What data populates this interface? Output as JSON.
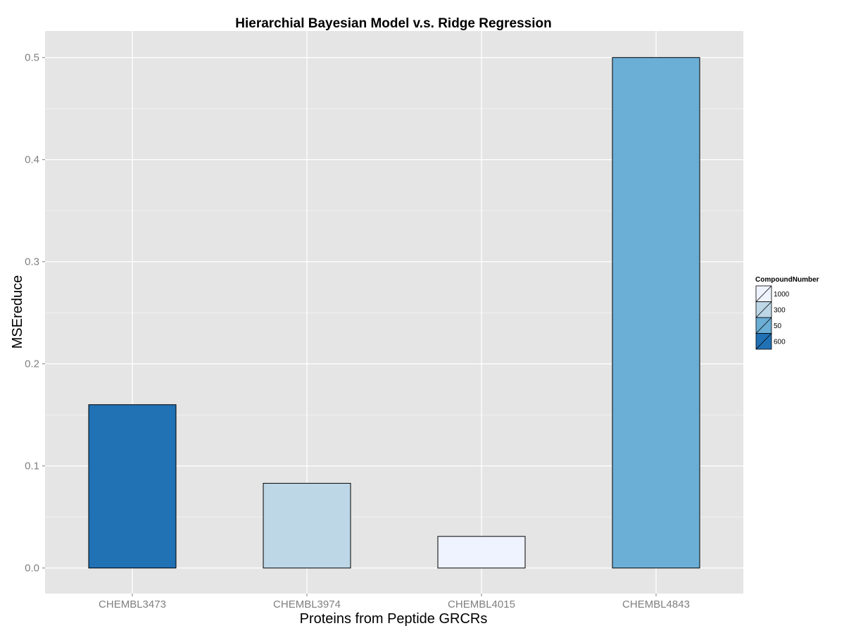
{
  "chart_data": {
    "type": "bar",
    "title": "Hierarchial Bayesian Model v.s. Ridge Regression",
    "xlabel": "Proteins from Peptide GRCRs",
    "ylabel": "MSEreduce",
    "categories": [
      "CHEMBL3473",
      "CHEMBL3974",
      "CHEMBL4015",
      "CHEMBL4843"
    ],
    "values": [
      0.16,
      0.083,
      0.031,
      0.5
    ],
    "fill_groups": [
      "600",
      "300",
      "1000",
      "50"
    ],
    "ylim": [
      -0.025,
      0.526
    ],
    "yticks": [
      0.0,
      0.1,
      0.2,
      0.3,
      0.4,
      0.5
    ],
    "ytick_labels": [
      "0.0",
      "0.1",
      "0.2",
      "0.3",
      "0.4",
      "0.5"
    ],
    "grid": true,
    "legend": {
      "title": "CompoundNumber",
      "placement": "right",
      "entries": [
        {
          "label": "1000",
          "color": "#eff3ff"
        },
        {
          "label": "300",
          "color": "#bdd7e7"
        },
        {
          "label": "50",
          "color": "#6baed6"
        },
        {
          "label": "600",
          "color": "#2171b5"
        }
      ]
    },
    "colors": {
      "panel_background": "#e5e5e5",
      "grid_major": "#ffffff",
      "grid_minor": "#f2f2f2",
      "bar_outline": "#000000"
    }
  }
}
